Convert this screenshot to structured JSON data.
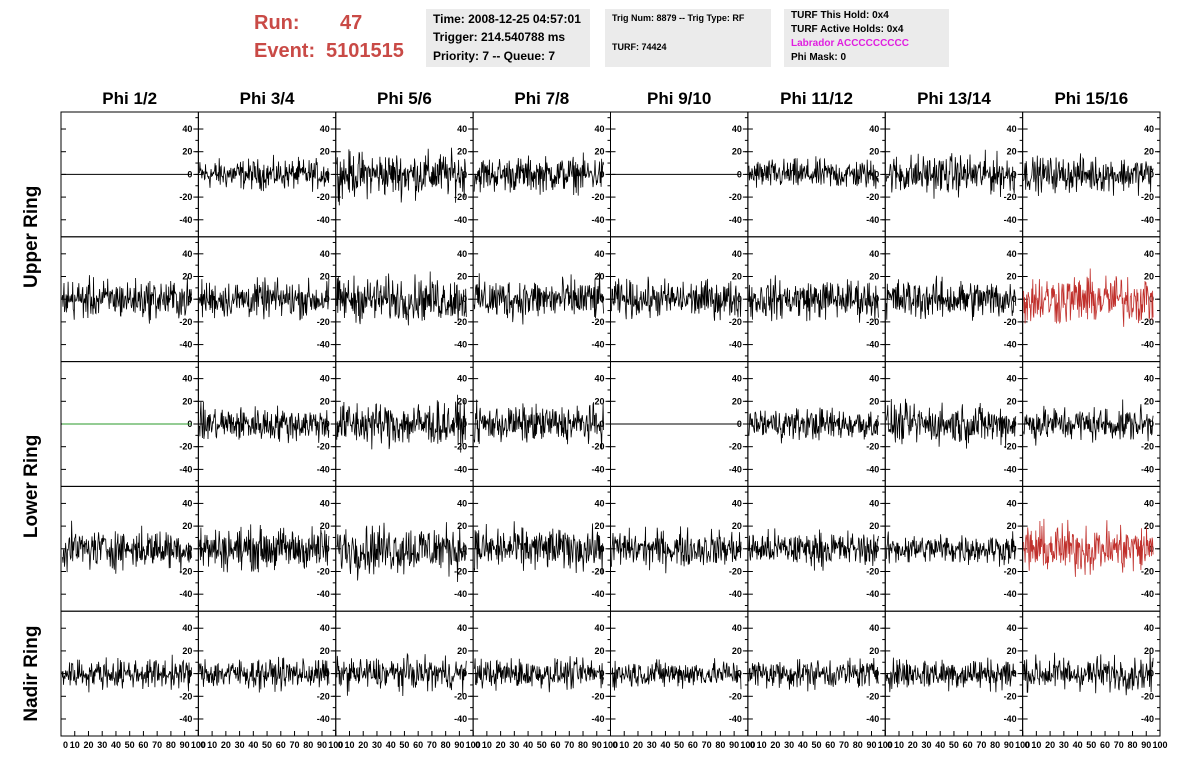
{
  "header": {
    "run_label": "Run:",
    "run_value": "47",
    "event_label": "Event:",
    "event_value": "5101515",
    "box1": {
      "time": "Time: 2008-12-25 04:57:01",
      "trigger": "Trigger: 214.540788 ms",
      "priority": "Priority: 7 -- Queue: 7"
    },
    "box2": {
      "trig": "Trig Num: 8879 -- Trig Type: RF",
      "turf": "TURF: 74424"
    },
    "box3": {
      "hold": "TURF This Hold: 0x4",
      "active": "TURF Active Holds: 0x4",
      "labrador": "Labrador ACCCCCCCCC",
      "phimask": "Phi Mask: 0"
    }
  },
  "colors": {
    "header_red": "#c94a46",
    "labrador_magenta": "#e01ee0",
    "trace_black": "#000000",
    "trace_red": "#c0302c",
    "trace_green": "#2a9a2a",
    "box_bg": "#ebebeb"
  },
  "chart_data": {
    "type": "line",
    "columns": [
      "Phi 1/2",
      "Phi 3/4",
      "Phi 5/6",
      "Phi 7/8",
      "Phi 9/10",
      "Phi 11/12",
      "Phi 13/14",
      "Phi 15/16"
    ],
    "rings": [
      "Upper Ring",
      "Lower Ring",
      "Nadir Ring"
    ],
    "xlim": [
      0,
      100
    ],
    "ylim": [
      -55,
      55
    ],
    "x_ticks": [
      "0",
      "10",
      "20",
      "30",
      "40",
      "50",
      "60",
      "70",
      "80",
      "90",
      "100"
    ],
    "y_ticks": [
      -40,
      -20,
      0,
      20,
      40
    ],
    "panel_rows": [
      {
        "ring": "Upper Ring",
        "traces": [
          {
            "style": "flat",
            "color": "black"
          },
          {
            "style": "noise",
            "amp": 12,
            "color": "black"
          },
          {
            "style": "noise",
            "amp": 18,
            "color": "black"
          },
          {
            "style": "noise",
            "amp": 14,
            "color": "black"
          },
          {
            "style": "flat",
            "color": "black"
          },
          {
            "style": "noise",
            "amp": 12,
            "color": "black"
          },
          {
            "style": "noise",
            "amp": 16,
            "color": "black"
          },
          {
            "style": "noise",
            "amp": 14,
            "color": "black"
          }
        ]
      },
      {
        "ring": "Upper Ring",
        "traces": [
          {
            "style": "noise",
            "amp": 16,
            "color": "black"
          },
          {
            "style": "noise",
            "amp": 15,
            "color": "black"
          },
          {
            "style": "noise",
            "amp": 18,
            "color": "black"
          },
          {
            "style": "noise",
            "amp": 17,
            "color": "black"
          },
          {
            "style": "noise",
            "amp": 15,
            "color": "black"
          },
          {
            "style": "noise",
            "amp": 16,
            "color": "black"
          },
          {
            "style": "noise",
            "amp": 16,
            "color": "black"
          },
          {
            "style": "noise",
            "amp": 20,
            "color": "red"
          }
        ]
      },
      {
        "ring": "Lower Ring",
        "traces": [
          {
            "style": "flat",
            "color": "green"
          },
          {
            "style": "noise",
            "amp": 14,
            "color": "black"
          },
          {
            "style": "noise",
            "amp": 18,
            "color": "black"
          },
          {
            "style": "noise",
            "amp": 15,
            "color": "black"
          },
          {
            "style": "flat",
            "color": "black"
          },
          {
            "style": "noise",
            "amp": 13,
            "color": "black"
          },
          {
            "style": "noise",
            "amp": 16,
            "color": "black"
          },
          {
            "style": "noise",
            "amp": 14,
            "color": "black"
          }
        ]
      },
      {
        "ring": "Lower Ring",
        "traces": [
          {
            "style": "noise",
            "amp": 16,
            "color": "black"
          },
          {
            "style": "noise",
            "amp": 17,
            "color": "black"
          },
          {
            "style": "noise",
            "amp": 20,
            "color": "black"
          },
          {
            "style": "noise",
            "amp": 17,
            "color": "black"
          },
          {
            "style": "noise",
            "amp": 15,
            "color": "black"
          },
          {
            "style": "noise",
            "amp": 14,
            "color": "black"
          },
          {
            "style": "noise",
            "amp": 12,
            "color": "black"
          },
          {
            "style": "noise",
            "amp": 20,
            "color": "red"
          }
        ]
      },
      {
        "ring": "Nadir Ring",
        "traces": [
          {
            "style": "noise",
            "amp": 12,
            "color": "black"
          },
          {
            "style": "noise",
            "amp": 12,
            "color": "black"
          },
          {
            "style": "noise",
            "amp": 13,
            "color": "black"
          },
          {
            "style": "noise",
            "amp": 12,
            "color": "black"
          },
          {
            "style": "noise",
            "amp": 11,
            "color": "black"
          },
          {
            "style": "noise",
            "amp": 12,
            "color": "black"
          },
          {
            "style": "noise",
            "amp": 13,
            "color": "black"
          },
          {
            "style": "noise",
            "amp": 14,
            "color": "black"
          }
        ]
      }
    ]
  }
}
